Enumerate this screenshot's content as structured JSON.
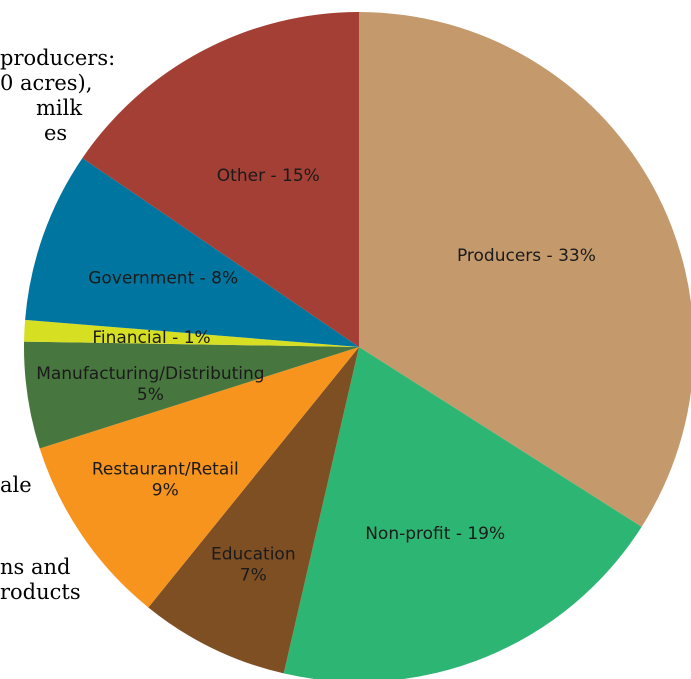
{
  "side_notes": {
    "line1": "producers:",
    "line2": "0 acres),",
    "line3": "milk",
    "line4": "es",
    "line5": "ale",
    "line6": "ns and",
    "line7": "roducts"
  },
  "chart_data": {
    "type": "pie",
    "start_angle_deg": 0,
    "direction": "clockwise",
    "slices": [
      {
        "label": "Producers - 33%",
        "value": 33,
        "color": "#c49a6c"
      },
      {
        "label": "Non-profit - 19%",
        "value": 19,
        "color": "#2db673"
      },
      {
        "label": "Education\n7%",
        "value": 7,
        "color": "#7f4f24"
      },
      {
        "label": "Restaurant/Retail\n9%",
        "value": 9,
        "color": "#f7941e"
      },
      {
        "label": "Manufacturing/Distributing\n5%",
        "value": 5,
        "color": "#48763f"
      },
      {
        "label": "Financial - 1%",
        "value": 1,
        "color": "#d7df23"
      },
      {
        "label": "Government - 8%",
        "value": 8,
        "color": "#0075a0"
      },
      {
        "label": "Other - 15%",
        "value": 15,
        "color": "#a33f35"
      }
    ]
  }
}
